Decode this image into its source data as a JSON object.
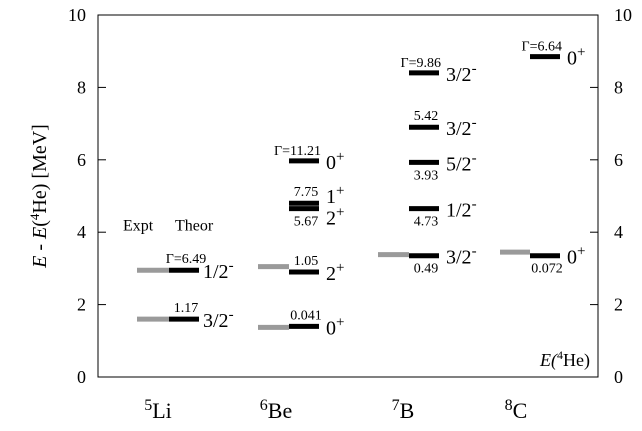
{
  "chart_data": {
    "type": "level-scheme",
    "ylabel": "E - E(4He)  [MeV]",
    "ylim": [
      0,
      10
    ],
    "yticks": [
      0,
      2,
      4,
      6,
      8,
      10
    ],
    "grid": false,
    "corner_label": "E(4He)",
    "column_headers": {
      "expt": "Expt",
      "theor": "Theor"
    },
    "colors": {
      "expt": "#9a9a9a",
      "theor": "#000000"
    },
    "nuclei": [
      {
        "name": "5Li",
        "mass": "5",
        "symbol": "Li",
        "expt": [
          1.6,
          2.95
        ],
        "levels": [
          {
            "energy": 1.6,
            "spin": "3/2",
            "parity": "-",
            "width_text": "1.17"
          },
          {
            "energy": 2.95,
            "spin": "1/2",
            "parity": "-",
            "width_text": "Γ=6.49"
          }
        ]
      },
      {
        "name": "6Be",
        "mass": "6",
        "symbol": "Be",
        "expt": [
          1.37,
          3.05
        ],
        "levels": [
          {
            "energy": 1.4,
            "spin": "0",
            "parity": "+",
            "width_text": "0.041"
          },
          {
            "energy": 2.9,
            "spin": "2",
            "parity": "+",
            "width_text": "1.05"
          },
          {
            "energy": 4.65,
            "spin": "2",
            "parity": "+",
            "width_text": "5.67"
          },
          {
            "energy": 4.8,
            "spin": "1",
            "parity": "+",
            "width_text": "7.75"
          },
          {
            "energy": 5.97,
            "spin": "0",
            "parity": "+",
            "width_text": "Γ=11.21"
          }
        ]
      },
      {
        "name": "7B",
        "mass": "7",
        "symbol": "B",
        "expt": [
          3.38
        ],
        "levels": [
          {
            "energy": 3.35,
            "spin": "3/2",
            "parity": "-",
            "width_text": "0.49"
          },
          {
            "energy": 4.65,
            "spin": "1/2",
            "parity": "-",
            "width_text": "4.73"
          },
          {
            "energy": 5.93,
            "spin": "5/2",
            "parity": "-",
            "width_text": "3.93"
          },
          {
            "energy": 6.9,
            "spin": "3/2",
            "parity": "-",
            "width_text": "5.42"
          },
          {
            "energy": 8.4,
            "spin": "3/2",
            "parity": "-",
            "width_text": "Γ=9.86"
          }
        ]
      },
      {
        "name": "8C",
        "mass": "8",
        "symbol": "C",
        "expt": [
          3.45
        ],
        "levels": [
          {
            "energy": 3.35,
            "spin": "0",
            "parity": "+",
            "width_text": "0.072"
          },
          {
            "energy": 8.85,
            "spin": "0",
            "parity": "+",
            "width_text": "Γ=6.64"
          }
        ]
      }
    ]
  }
}
